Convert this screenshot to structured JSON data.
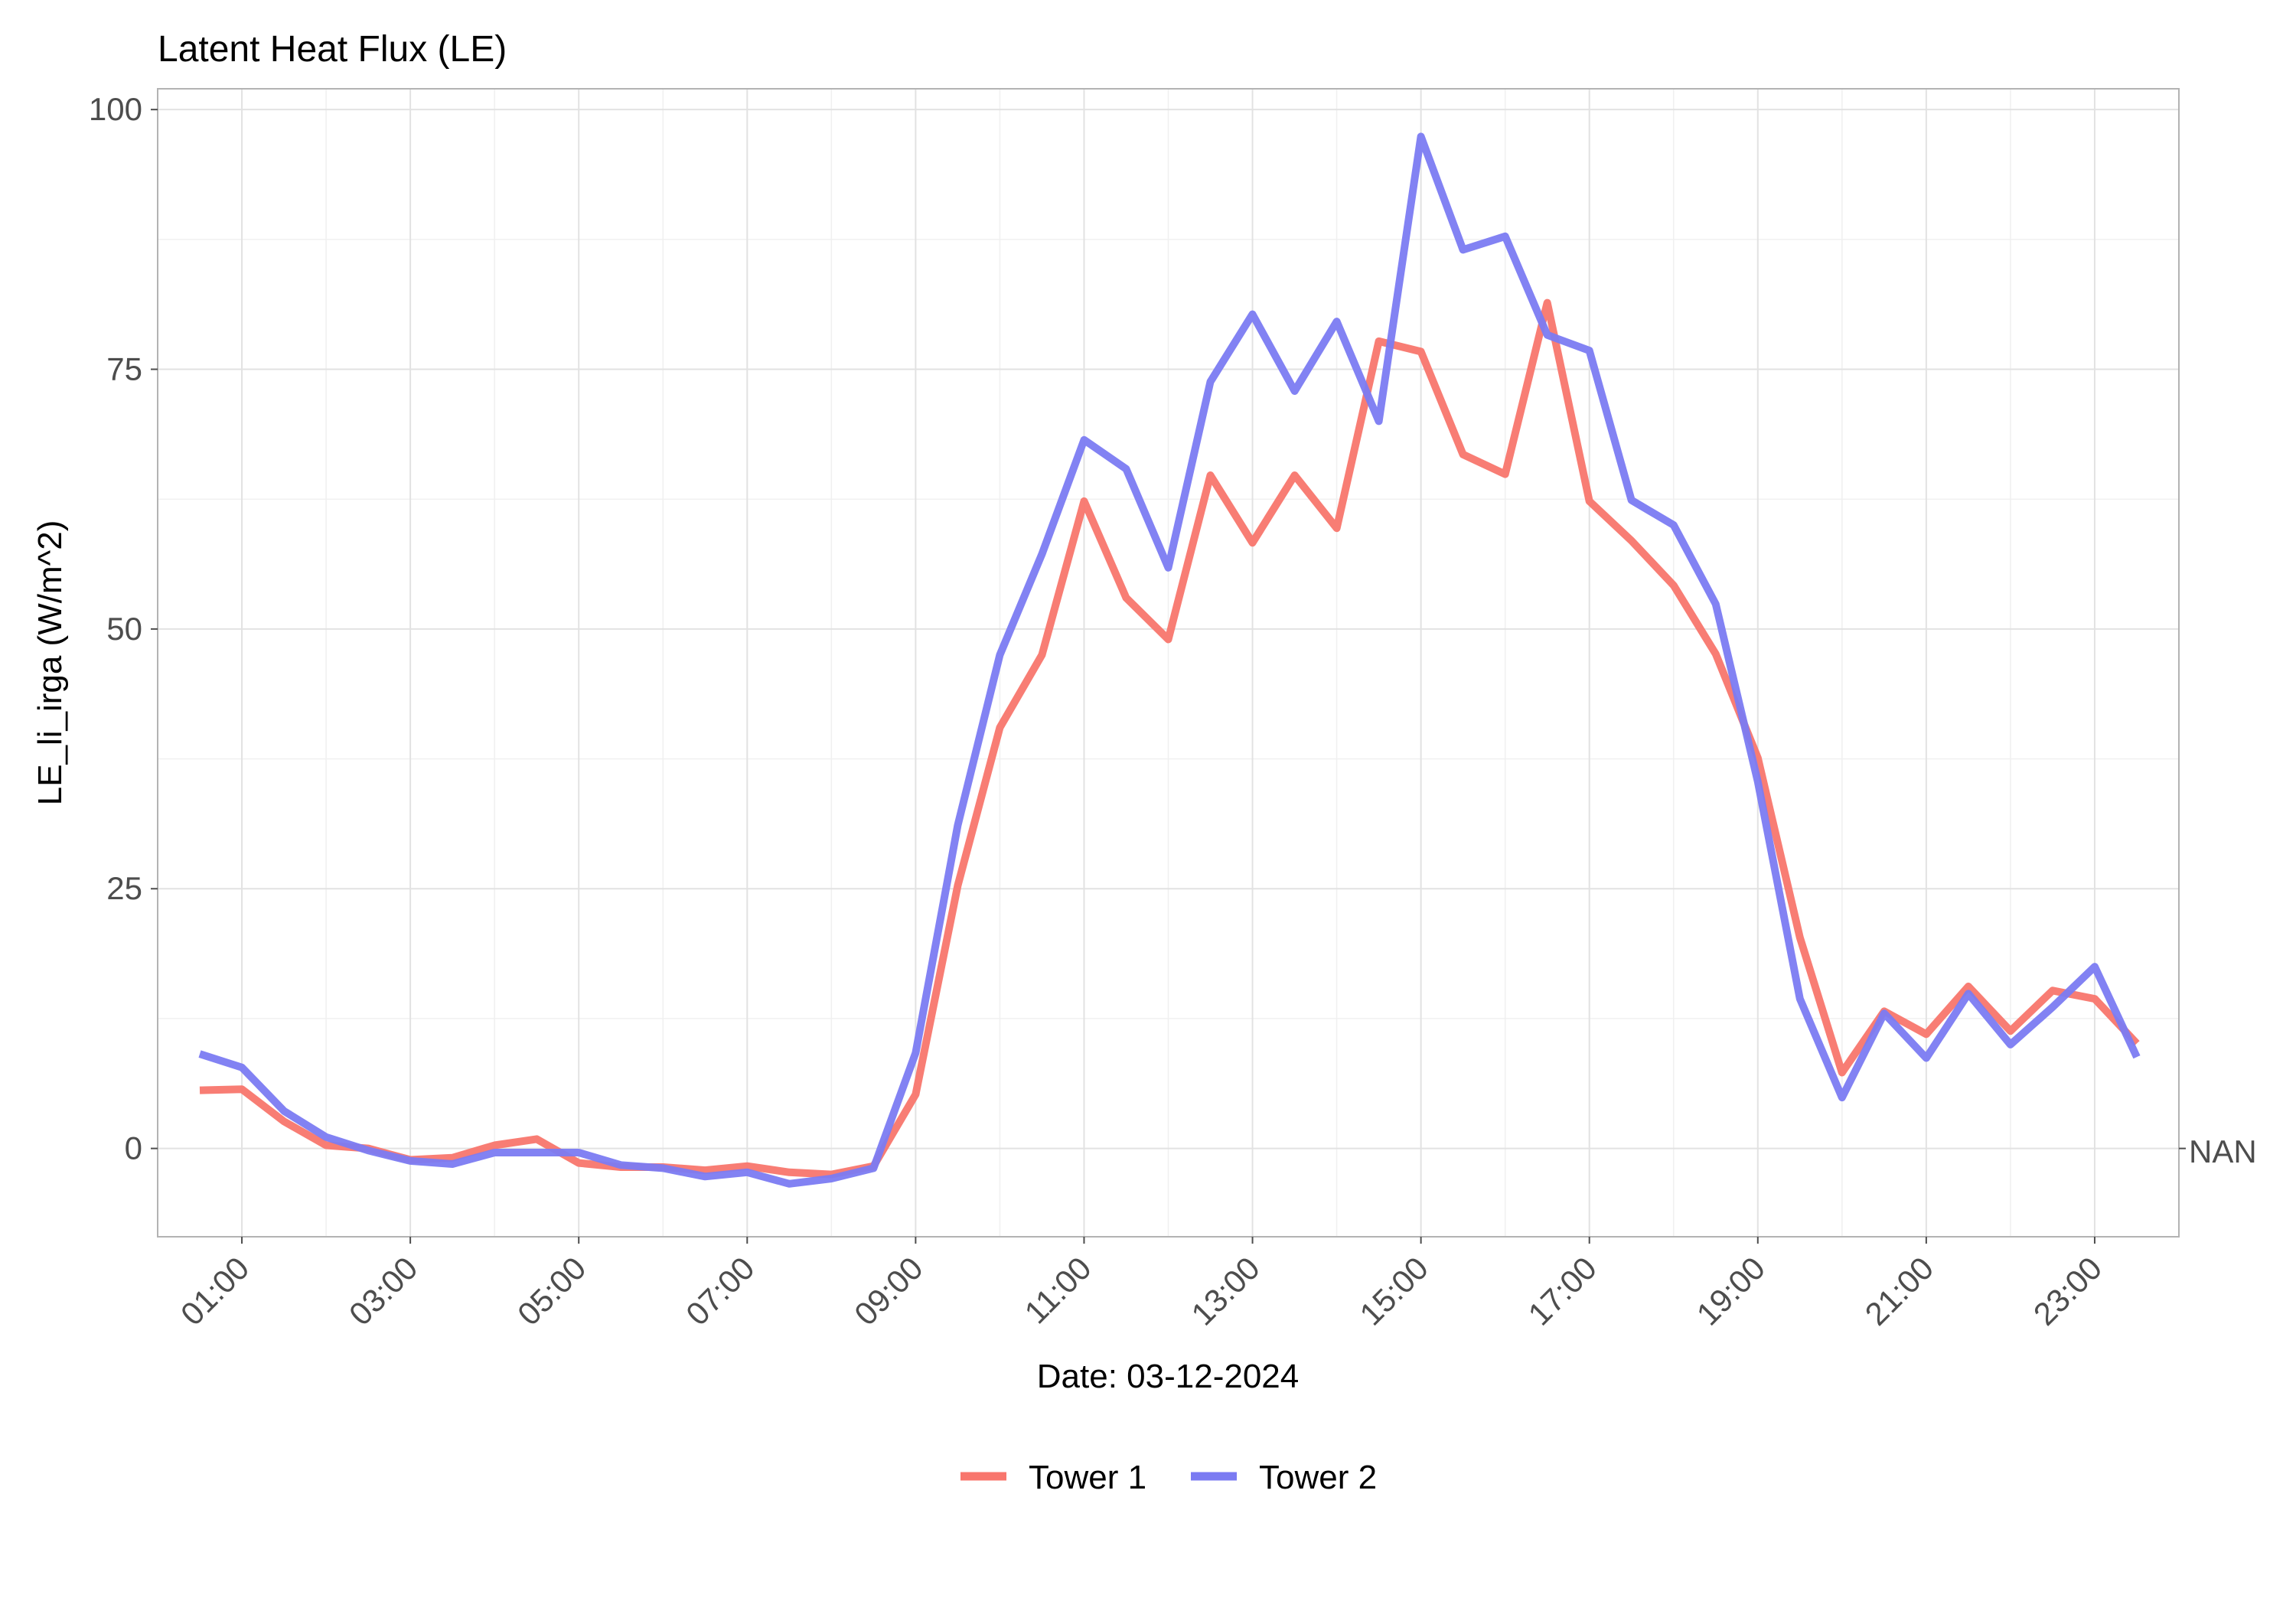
{
  "chart_data": {
    "type": "line",
    "title": "Latent Heat Flux (LE)",
    "xlabel": "Date: 03-12-2024",
    "ylabel": "LE_li_irga (W/m^2)",
    "xlim": [
      "00:00",
      "24:00"
    ],
    "ylim": [
      -8.5,
      102
    ],
    "x_ticks": [
      "01:00",
      "03:00",
      "05:00",
      "07:00",
      "09:00",
      "11:00",
      "13:00",
      "15:00",
      "17:00",
      "19:00",
      "21:00",
      "23:00"
    ],
    "y_ticks": [
      0,
      25,
      50,
      75,
      100
    ],
    "y_tick_labels": [
      "0",
      "25",
      "50",
      "75",
      "100"
    ],
    "secondary_y_label": "NAN",
    "grid": true,
    "legend_position": "bottom",
    "x": [
      "00:30",
      "01:00",
      "01:30",
      "02:00",
      "02:30",
      "03:00",
      "03:30",
      "04:00",
      "04:30",
      "05:00",
      "05:30",
      "06:00",
      "06:30",
      "07:00",
      "07:30",
      "08:00",
      "08:30",
      "09:00",
      "09:30",
      "10:00",
      "10:30",
      "11:00",
      "11:30",
      "12:00",
      "12:30",
      "13:00",
      "13:30",
      "14:00",
      "14:30",
      "15:00",
      "15:30",
      "16:00",
      "16:30",
      "17:00",
      "17:30",
      "18:00",
      "18:30",
      "19:00",
      "19:30",
      "20:00",
      "20:30",
      "21:00",
      "21:30",
      "22:00",
      "22:30",
      "23:00",
      "23:30"
    ],
    "series": [
      {
        "name": "Tower 1",
        "color": "#f8766d",
        "values": [
          5.6,
          5.7,
          2.6,
          0.3,
          0.0,
          -1.1,
          -0.9,
          0.3,
          0.9,
          -1.4,
          -1.8,
          -1.8,
          -2.1,
          -1.7,
          -2.3,
          -2.5,
          -1.7,
          5.2,
          25.3,
          40.5,
          47.5,
          62.3,
          53.0,
          49.0,
          64.8,
          58.3,
          64.8,
          59.7,
          77.7,
          76.7,
          66.8,
          64.9,
          81.4,
          62.3,
          58.5,
          54.2,
          47.6,
          37.6,
          20.3,
          7.3,
          13.2,
          11.0,
          15.6,
          11.3,
          15.2,
          14.4,
          10.1
        ]
      },
      {
        "name": "Tower 2",
        "color": "#7b7bf2",
        "values": [
          9.1,
          7.8,
          3.6,
          1.1,
          -0.2,
          -1.2,
          -1.5,
          -0.4,
          -0.4,
          -0.4,
          -1.6,
          -1.9,
          -2.7,
          -2.3,
          -3.4,
          -2.9,
          -1.9,
          9.2,
          31.1,
          47.5,
          57.2,
          68.2,
          65.4,
          55.9,
          73.8,
          80.3,
          72.9,
          79.6,
          70.0,
          97.4,
          86.5,
          87.8,
          78.3,
          76.8,
          62.4,
          60.0,
          52.4,
          35.3,
          14.4,
          4.9,
          13.0,
          8.7,
          14.9,
          10.0,
          13.6,
          17.5,
          8.8
        ]
      }
    ]
  }
}
